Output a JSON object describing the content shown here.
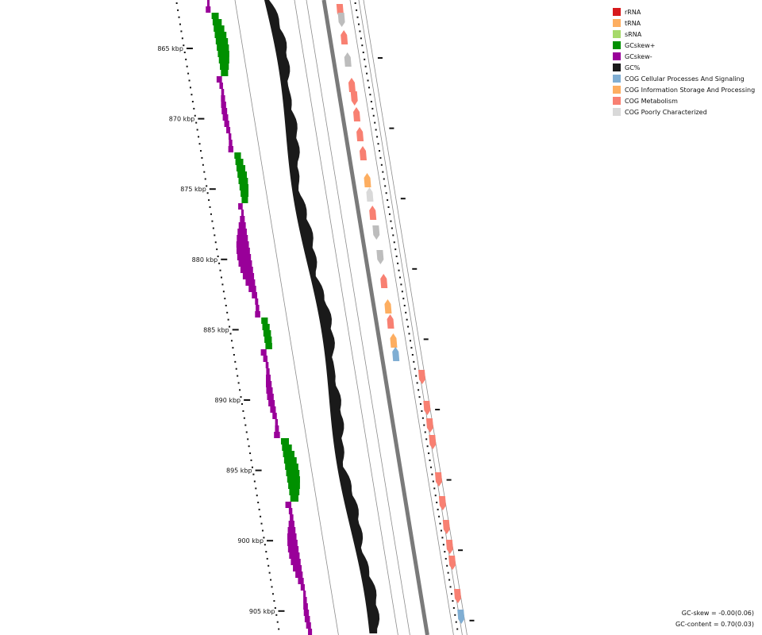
{
  "legend": {
    "items": [
      {
        "label": "rRNA",
        "color": "#d7191c"
      },
      {
        "label": "tRNA",
        "color": "#fdae61"
      },
      {
        "label": "sRNA",
        "color": "#a6d96a"
      },
      {
        "label": "GCskew+",
        "color": "#009000"
      },
      {
        "label": "GCskew-",
        "color": "#990099"
      },
      {
        "label": "GC%",
        "color": "#1a1a1a"
      },
      {
        "label": "COG Cellular Processes And Signaling",
        "color": "#80aed3"
      },
      {
        "label": "COG Information Storage And Processing",
        "color": "#fdae61"
      },
      {
        "label": "COG Metabolism",
        "color": "#f88072"
      },
      {
        "label": "COG Poorly Characterized",
        "color": "#d9d9d9"
      }
    ]
  },
  "ruler": {
    "unit": "kbp",
    "ticks": [
      865,
      870,
      875,
      880,
      885,
      890,
      895,
      900,
      905
    ]
  },
  "stats": {
    "gc_skew": "GC-skew = -0.00(0.06)",
    "gc_content": "GC-content = 0.70(0.03)"
  }
}
